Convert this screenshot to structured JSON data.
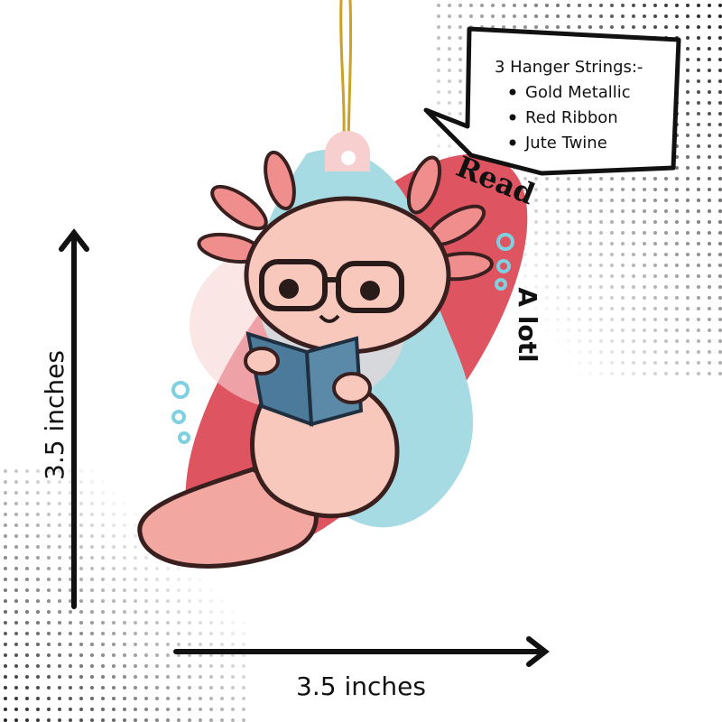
{
  "callout": {
    "title": "3 Hanger Strings:-",
    "items": [
      "Gold Metallic",
      "Red Ribbon",
      "Jute Twine"
    ]
  },
  "dimensions": {
    "height": "3.5 inches",
    "width": "3.5 inches"
  },
  "ornament": {
    "top_text": "Read",
    "side_text": "A lotl"
  }
}
